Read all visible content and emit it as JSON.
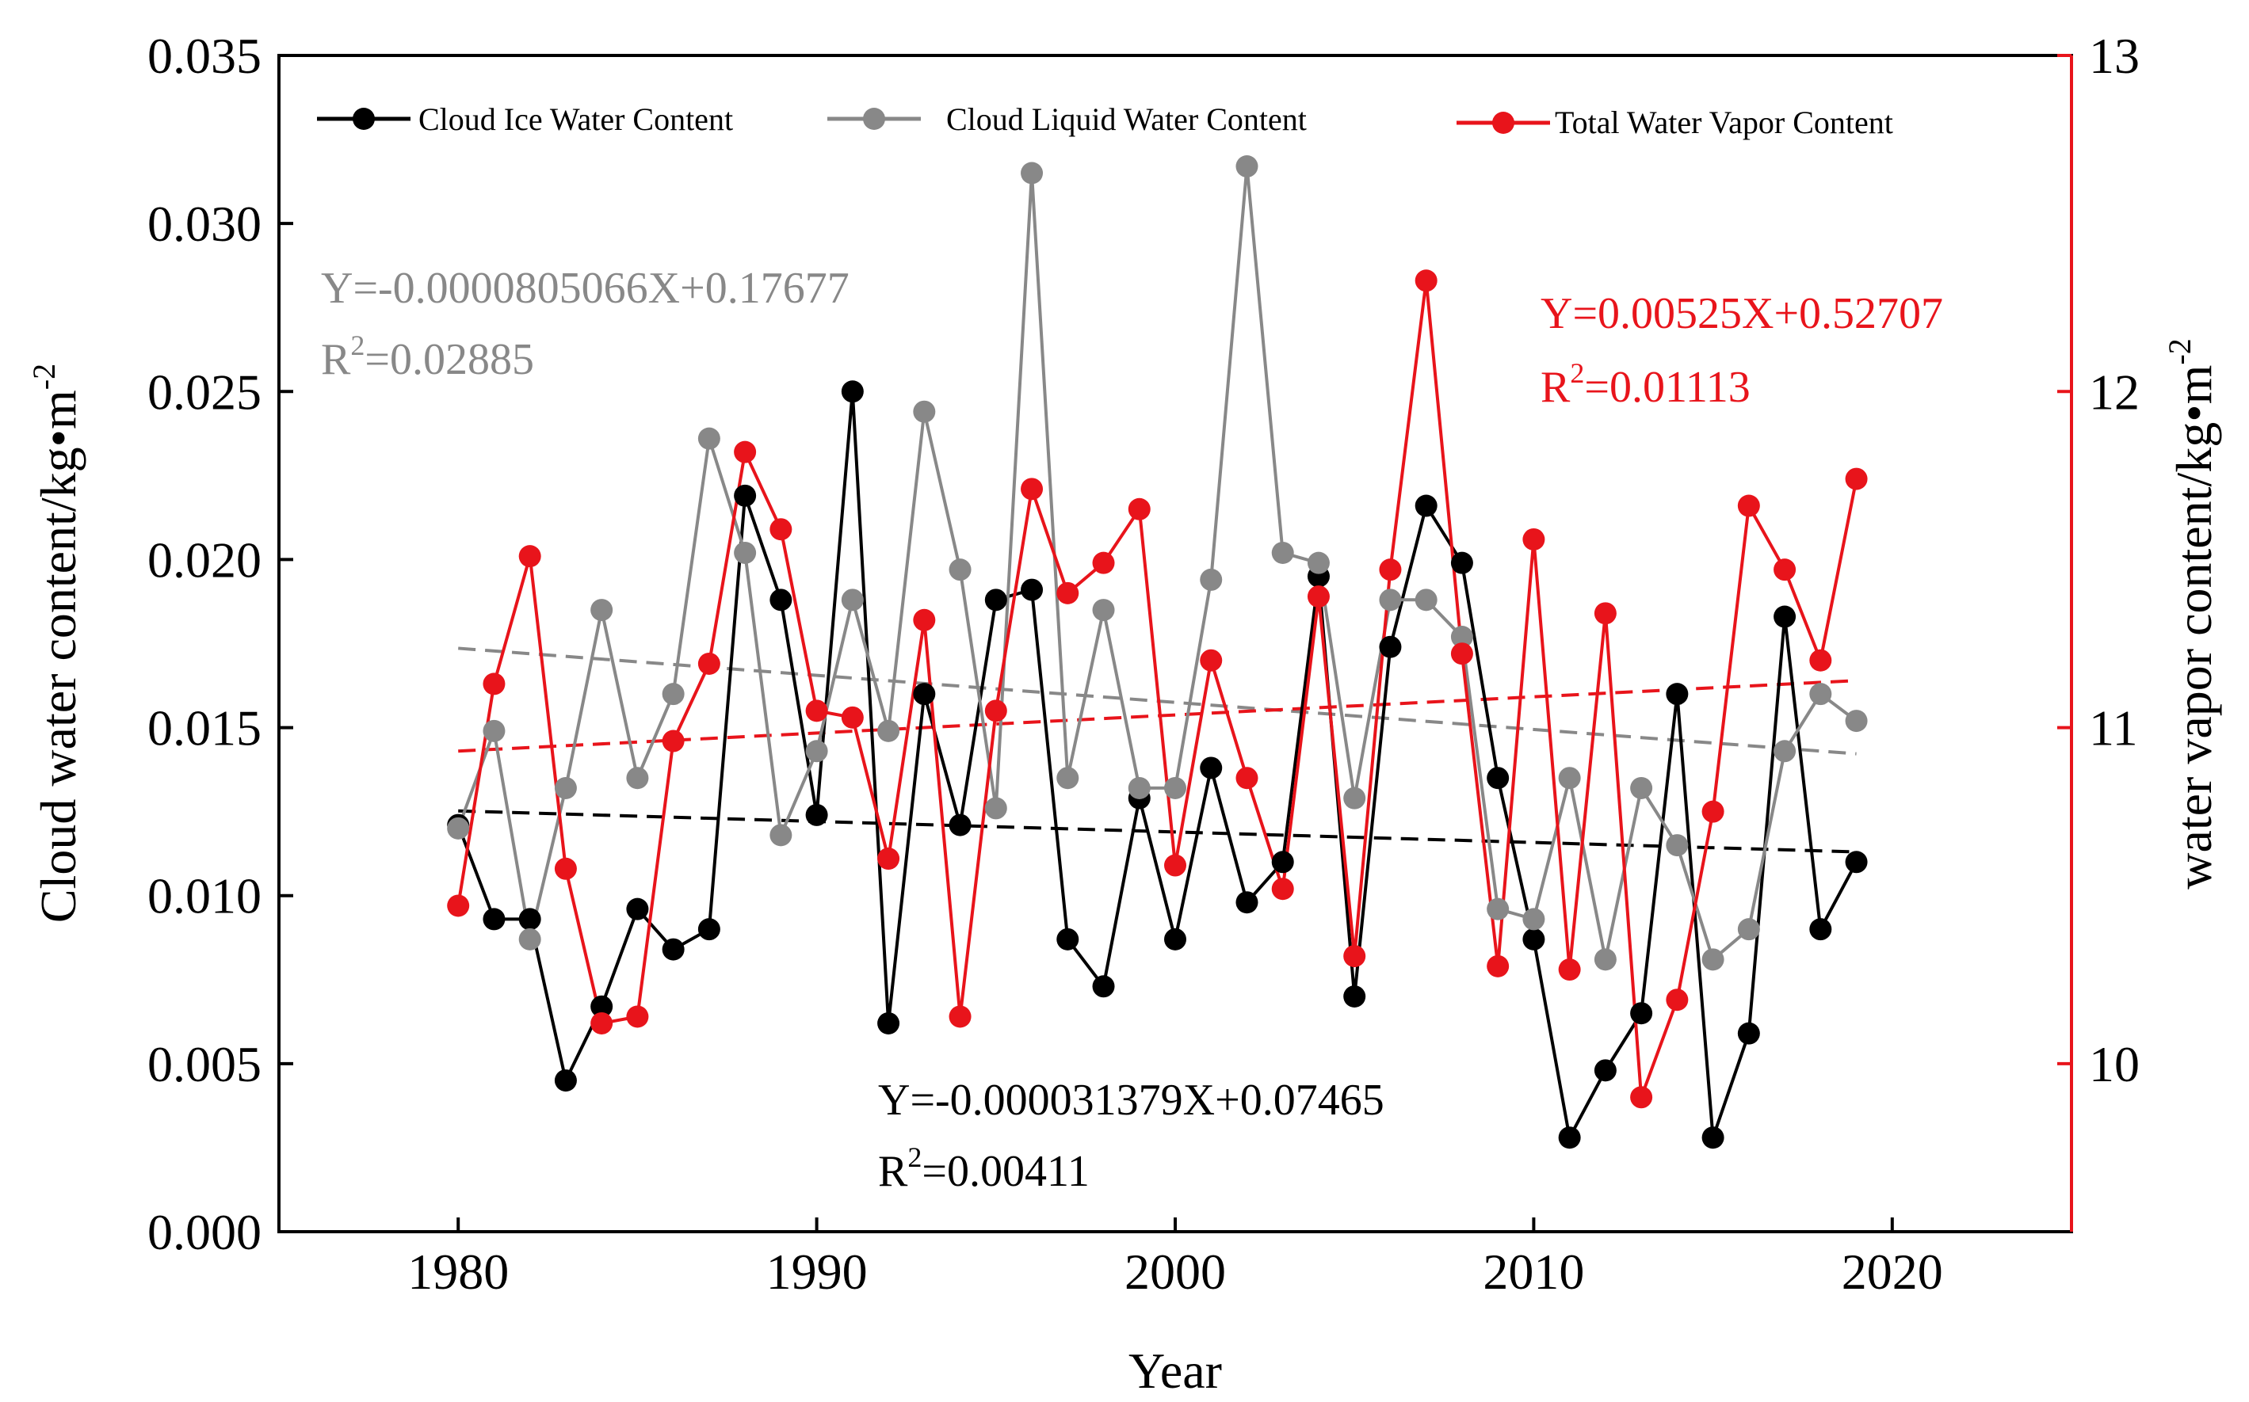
{
  "chart_data": {
    "type": "line",
    "xlabel": "Year",
    "ylabel_left": "Cloud water content/kg•m",
    "ylabel_left_exp": "-2",
    "ylabel_right": "water vapor content/kg•m",
    "ylabel_right_exp": "-2",
    "xlim": [
      1975,
      2025
    ],
    "ylim_left": [
      0.0,
      0.035
    ],
    "ylim_right": [
      9.5,
      13
    ],
    "x_ticks": [
      "1980",
      "1990",
      "2000",
      "2010",
      "2020"
    ],
    "x_tick_values": [
      1980,
      1990,
      2000,
      2010,
      2020
    ],
    "y_left_ticks": [
      "0.000",
      "0.005",
      "0.010",
      "0.015",
      "0.020",
      "0.025",
      "0.030",
      "0.035"
    ],
    "y_left_tick_values": [
      0,
      0.005,
      0.01,
      0.015,
      0.02,
      0.025,
      0.03,
      0.035
    ],
    "y_right_ticks": [
      "10",
      "11",
      "12",
      "13"
    ],
    "y_right_tick_values": [
      10,
      11,
      12,
      13
    ],
    "x": [
      1980,
      1981,
      1982,
      1983,
      1984,
      1985,
      1986,
      1987,
      1988,
      1989,
      1990,
      1991,
      1992,
      1993,
      1994,
      1995,
      1996,
      1997,
      1998,
      1999,
      2000,
      2001,
      2002,
      2003,
      2004,
      2005,
      2006,
      2007,
      2008,
      2009,
      2010,
      2011,
      2012,
      2013,
      2014,
      2015,
      2016,
      2017,
      2018,
      2019
    ],
    "series": [
      {
        "name": "Cloud Ice Water Content",
        "axis": "left",
        "color": "#000000",
        "values": [
          0.0121,
          0.0093,
          0.0093,
          0.0045,
          0.0067,
          0.0096,
          0.0084,
          0.009,
          0.0219,
          0.0188,
          0.0124,
          0.025,
          0.0062,
          0.016,
          0.0121,
          0.0188,
          0.0191,
          0.0087,
          0.0073,
          0.0129,
          0.0087,
          0.0138,
          0.0098,
          0.011,
          0.0195,
          0.007,
          0.0174,
          0.0216,
          0.0199,
          0.0135,
          0.0087,
          0.0028,
          0.0048,
          0.0065,
          0.016,
          0.0028,
          0.0059,
          0.0183,
          0.009,
          0.011
        ],
        "trend": {
          "x": [
            1980,
            2019
          ],
          "y": [
            0.01252,
            0.0113
          ]
        },
        "equation": "Y=-0.000031379X+0.07465",
        "r2_prefix": "R",
        "r2_exp": "2",
        "r2_value": "=0.00411"
      },
      {
        "name": "Cloud Liquid Water Content",
        "axis": "left",
        "color": "#888888",
        "values": [
          0.012,
          0.0149,
          0.0087,
          0.0132,
          0.0185,
          0.0135,
          0.016,
          0.0236,
          0.0202,
          0.0118,
          0.0143,
          0.0188,
          0.0149,
          0.0244,
          0.0197,
          0.0126,
          0.0315,
          0.0135,
          0.0185,
          0.0132,
          0.0132,
          0.0194,
          0.0317,
          0.0202,
          0.0199,
          0.0129,
          0.0188,
          0.0188,
          0.0177,
          0.0096,
          0.0093,
          0.0135,
          0.0081,
          0.0132,
          0.0115,
          0.0081,
          0.009,
          0.0143,
          0.016,
          0.0152
        ],
        "trend": {
          "x": [
            1980,
            2019
          ],
          "y": [
            0.01736,
            0.01422
          ]
        },
        "equation": "Y=-0.0000805066X+0.17677",
        "r2_prefix": "R",
        "r2_exp": "2",
        "r2_value": "=0.02885"
      },
      {
        "name": "Total Water Vapor Content",
        "axis": "right",
        "color": "#e8141b",
        "values": [
          10.47,
          11.13,
          11.51,
          10.58,
          10.12,
          10.14,
          10.96,
          11.19,
          11.82,
          11.59,
          11.05,
          11.03,
          10.61,
          11.32,
          10.14,
          11.05,
          11.71,
          11.4,
          11.49,
          11.65,
          10.59,
          11.2,
          10.85,
          10.52,
          11.39,
          10.32,
          11.47,
          12.33,
          11.22,
          10.29,
          11.56,
          10.28,
          11.34,
          9.9,
          10.19,
          10.75,
          11.66,
          11.47,
          11.2,
          11.74
        ],
        "trend": {
          "x": [
            1980,
            2019
          ],
          "y": [
            10.93,
            11.14
          ]
        },
        "equation": "Y=0.00525X+0.52707",
        "r2_prefix": "R",
        "r2_exp": "2",
        "r2_value": "=0.01113"
      }
    ]
  }
}
